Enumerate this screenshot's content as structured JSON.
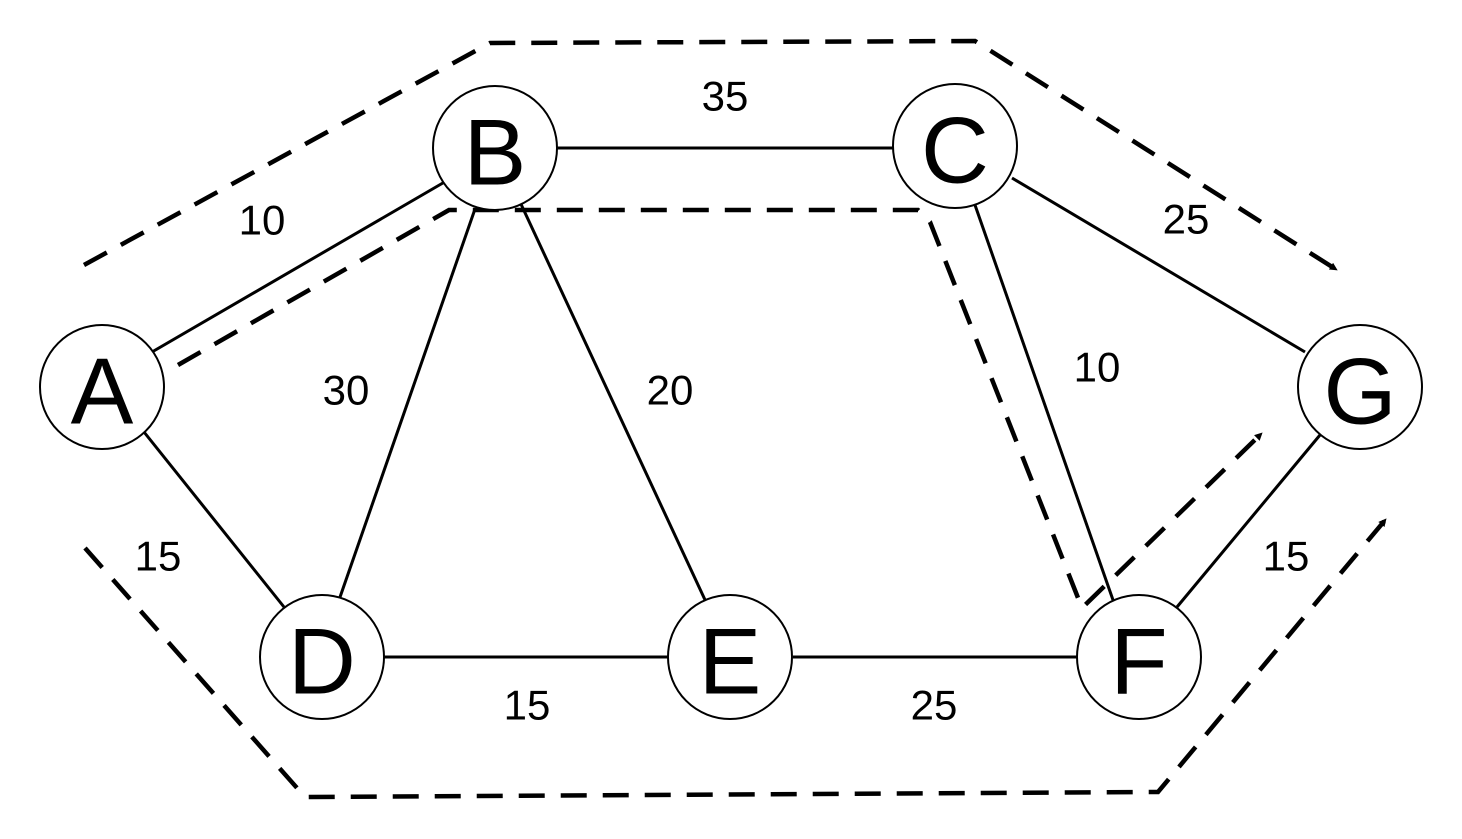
{
  "nodes": [
    {
      "id": "A",
      "label": "A"
    },
    {
      "id": "B",
      "label": "B"
    },
    {
      "id": "C",
      "label": "C"
    },
    {
      "id": "D",
      "label": "D"
    },
    {
      "id": "E",
      "label": "E"
    },
    {
      "id": "F",
      "label": "F"
    },
    {
      "id": "G",
      "label": "G"
    }
  ],
  "edges": [
    {
      "from": "A",
      "to": "B",
      "weight": "10"
    },
    {
      "from": "A",
      "to": "D",
      "weight": "15"
    },
    {
      "from": "B",
      "to": "C",
      "weight": "35"
    },
    {
      "from": "B",
      "to": "D",
      "weight": "30"
    },
    {
      "from": "B",
      "to": "E",
      "weight": "20"
    },
    {
      "from": "C",
      "to": "F",
      "weight": "10"
    },
    {
      "from": "C",
      "to": "G",
      "weight": "25"
    },
    {
      "from": "D",
      "to": "E",
      "weight": "15"
    },
    {
      "from": "E",
      "to": "F",
      "weight": "25"
    },
    {
      "from": "F",
      "to": "G",
      "weight": "15"
    }
  ],
  "routes": [
    {
      "name": "outer-top-route",
      "style": "dashed",
      "arrow": true
    },
    {
      "name": "inner-route",
      "style": "dashed",
      "arrow": true
    },
    {
      "name": "outer-bottom-route",
      "style": "dashed",
      "arrow": true
    }
  ]
}
